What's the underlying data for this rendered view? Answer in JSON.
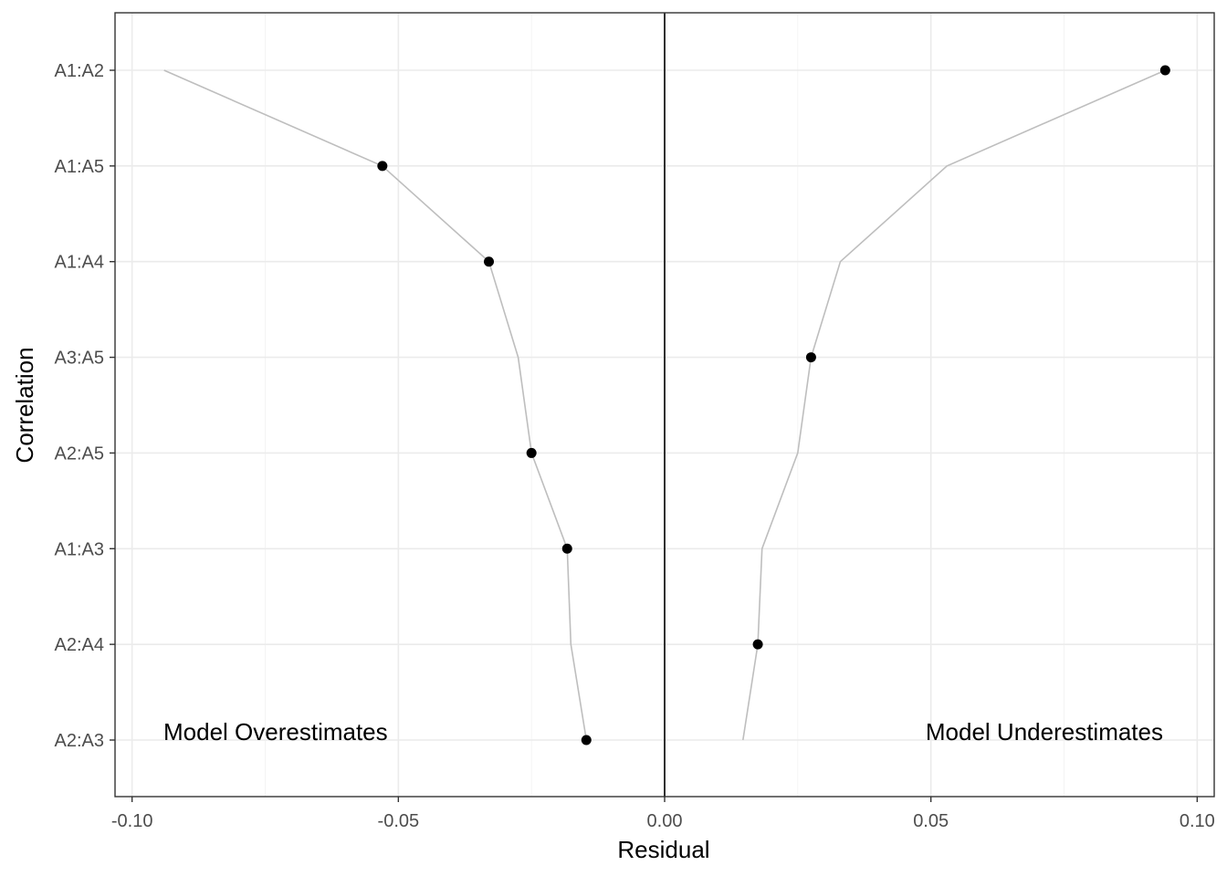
{
  "chart_data": {
    "type": "scatter",
    "title": "",
    "xlabel": "Residual",
    "ylabel": "Correlation",
    "xlim": [
      -0.1032,
      0.1032
    ],
    "x_ticks": [
      -0.1,
      -0.05,
      0.0,
      0.05,
      0.1
    ],
    "x_tick_labels": [
      "-0.10",
      "-0.05",
      "0.00",
      "0.05",
      "0.10"
    ],
    "categories": [
      "A1:A2",
      "A1:A5",
      "A1:A4",
      "A3:A5",
      "A2:A5",
      "A1:A3",
      "A2:A4",
      "A2:A3"
    ],
    "grid": true,
    "reference_line_x": 0.0,
    "points": [
      {
        "label": "A1:A2",
        "x": 0.094
      },
      {
        "label": "A1:A5",
        "x": -0.053
      },
      {
        "label": "A1:A4",
        "x": -0.033
      },
      {
        "label": "A3:A5",
        "x": 0.0275
      },
      {
        "label": "A2:A5",
        "x": -0.025
      },
      {
        "label": "A1:A3",
        "x": -0.0183
      },
      {
        "label": "A2:A4",
        "x": 0.0175
      },
      {
        "label": "A2:A3",
        "x": -0.0147
      }
    ],
    "envelope_lower": [
      -0.094,
      -0.053,
      -0.033,
      -0.0275,
      -0.025,
      -0.0183,
      -0.0176,
      -0.0147
    ],
    "envelope_upper": [
      0.094,
      0.053,
      0.033,
      0.0275,
      0.025,
      0.0183,
      0.0175,
      0.0147
    ],
    "annotations": {
      "left": "Model Overestimates",
      "right": "Model Underestimates"
    },
    "colors": {
      "points": "#000000",
      "envelope": "#bebebe",
      "reference_line": "#000000",
      "panel_border": "#333333"
    }
  }
}
